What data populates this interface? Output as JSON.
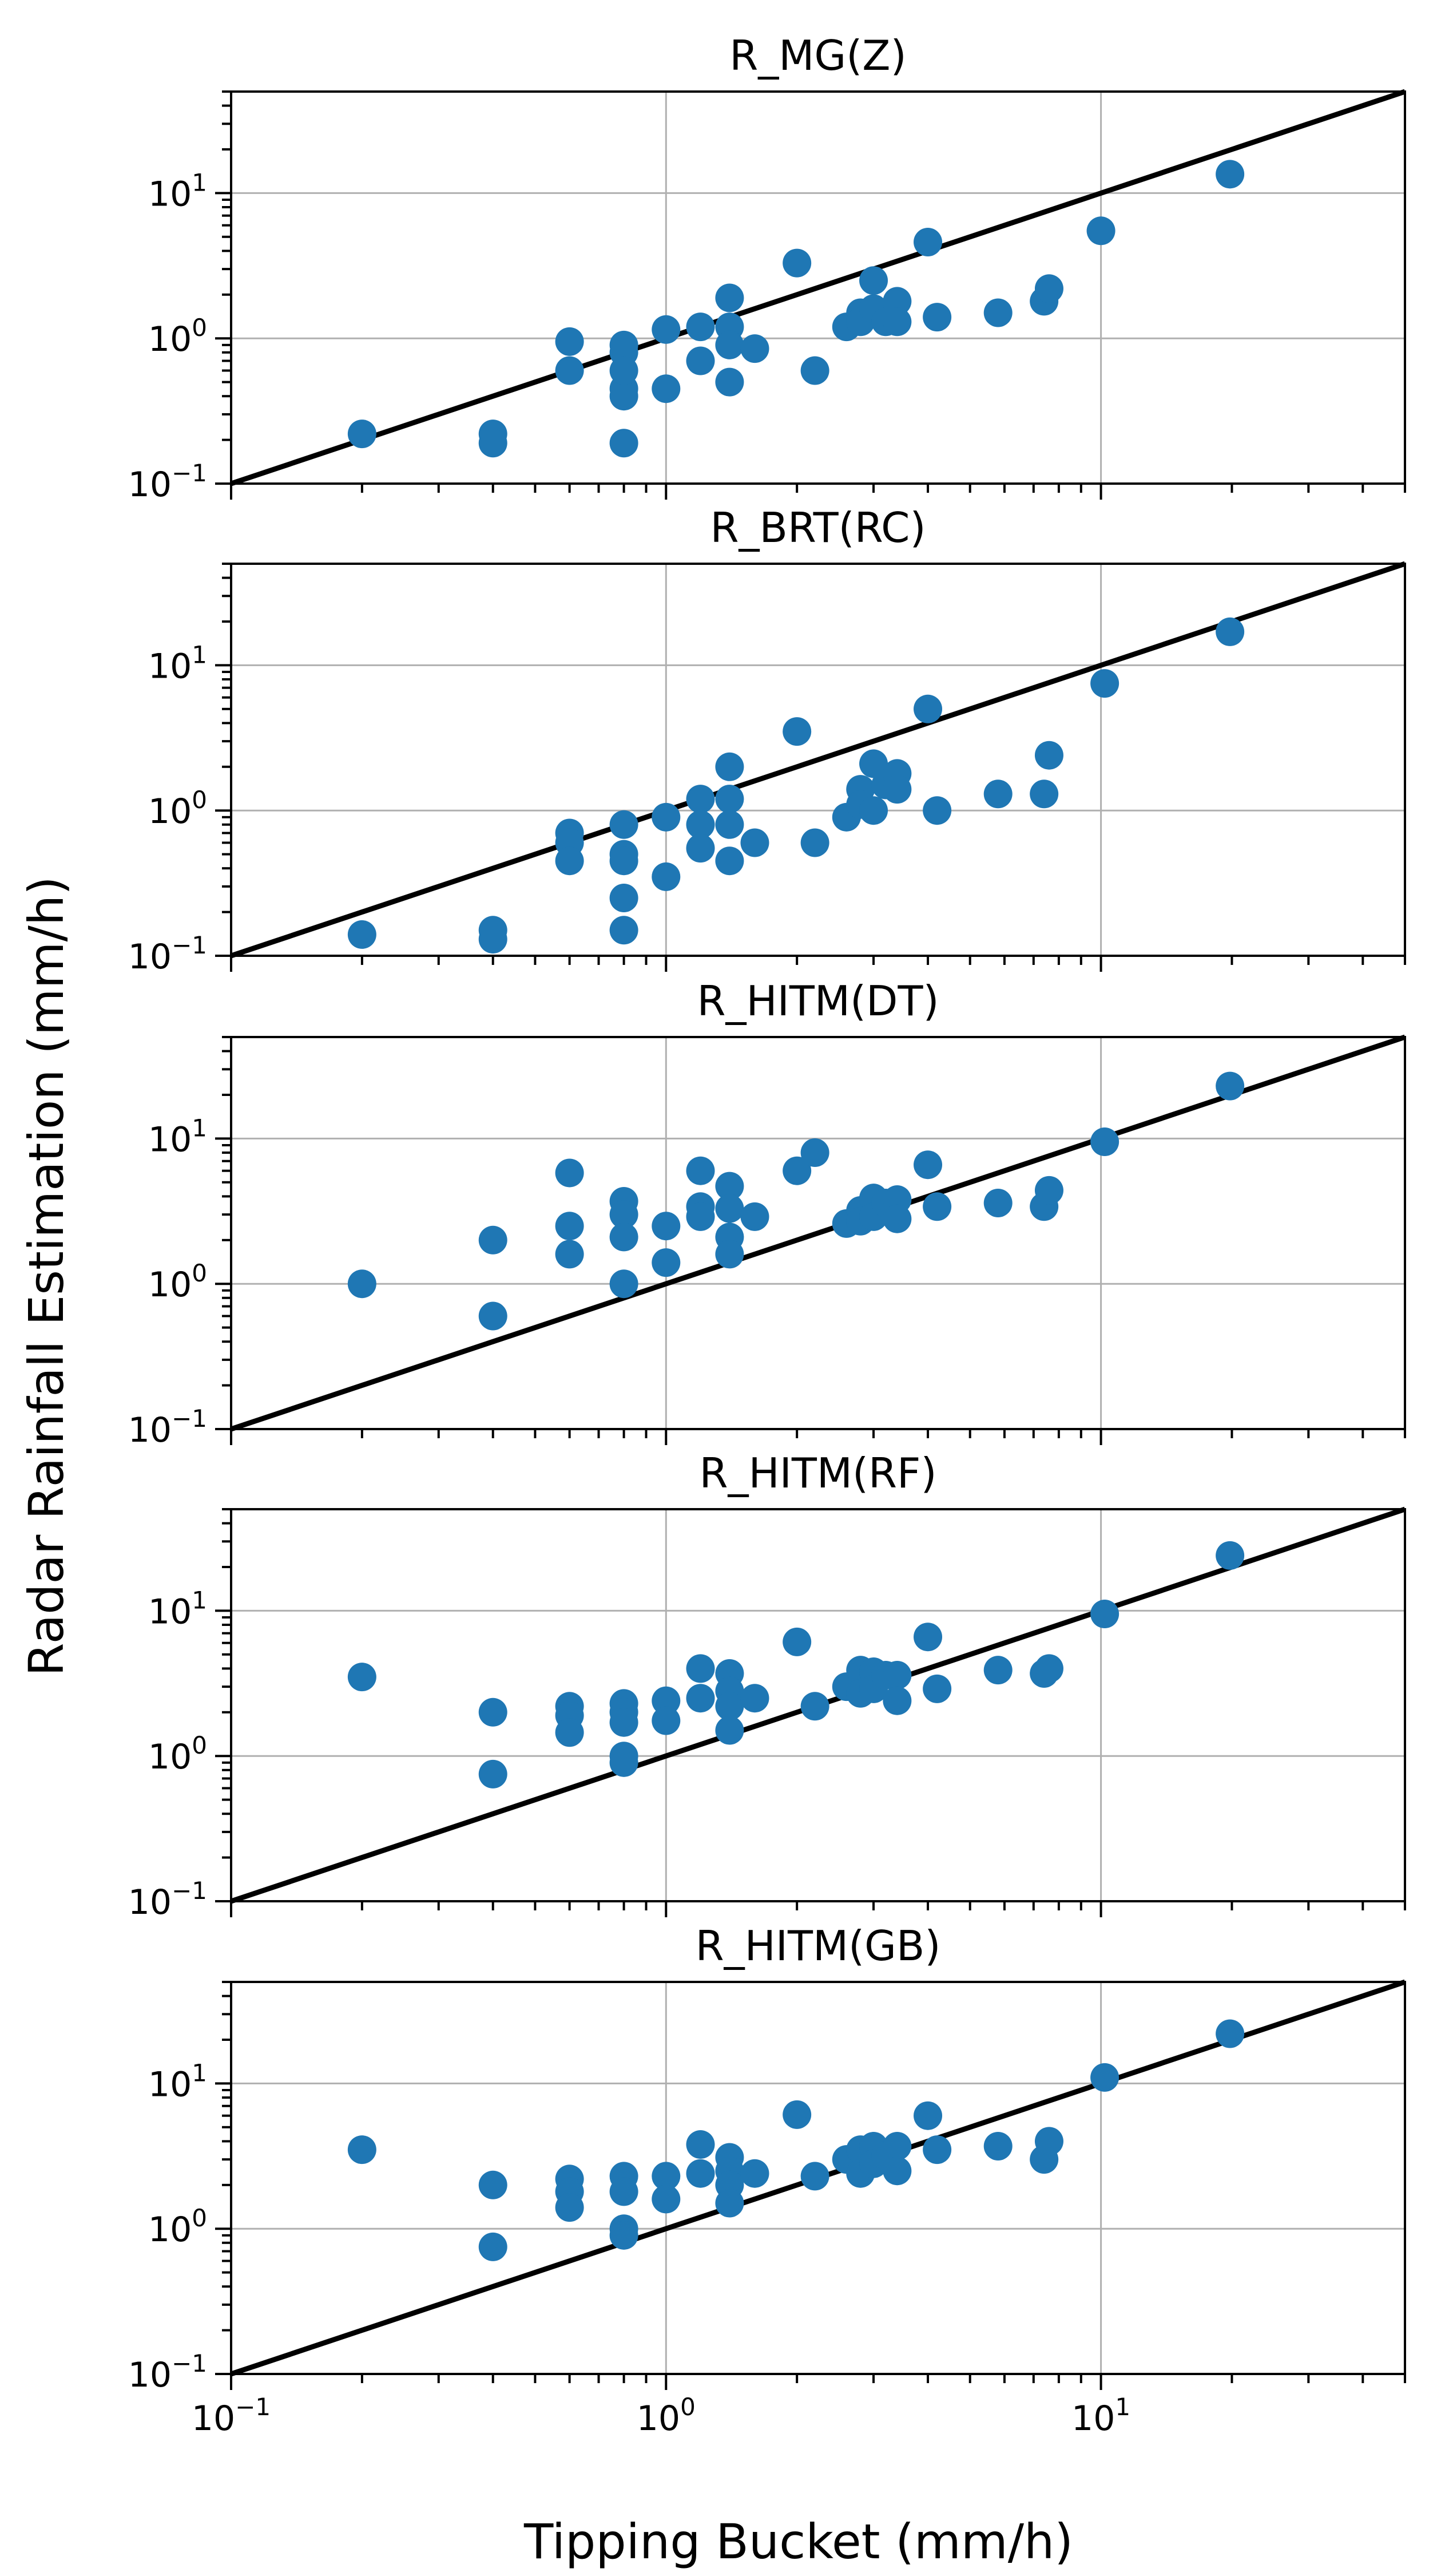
{
  "figure": {
    "ylabel": "Radar Rainfall Estimation (mm/h)",
    "xlabel": "Tipping Bucket (mm/h)"
  },
  "axis_ticks": {
    "x": [
      {
        "base": "10",
        "exp": "−1"
      },
      {
        "base": "10",
        "exp": "0"
      },
      {
        "base": "10",
        "exp": "1"
      }
    ],
    "y": [
      {
        "base": "10",
        "exp": "−1"
      },
      {
        "base": "10",
        "exp": "0"
      },
      {
        "base": "10",
        "exp": "1"
      }
    ]
  },
  "colors": {
    "marker": "#1f77b4",
    "line": "#000000",
    "grid": "#b0b0b0",
    "frame": "#000000"
  },
  "chart_data": [
    {
      "type": "scatter",
      "title": "R_MG(Z)",
      "xscale": "log",
      "yscale": "log",
      "xlim": [
        0.1,
        50
      ],
      "ylim": [
        0.1,
        50
      ],
      "reference_line": "1:1",
      "x": [
        0.2,
        0.4,
        0.4,
        0.6,
        0.6,
        0.8,
        0.8,
        0.8,
        0.8,
        0.8,
        0.8,
        1.0,
        1.0,
        1.2,
        1.2,
        1.4,
        1.4,
        1.4,
        1.4,
        1.6,
        2.0,
        2.2,
        2.6,
        2.8,
        2.8,
        3.0,
        3.0,
        3.2,
        3.4,
        3.4,
        4.0,
        4.2,
        5.8,
        7.4,
        7.6,
        10.0,
        19.8
      ],
      "y": [
        0.22,
        0.22,
        0.19,
        0.95,
        0.6,
        0.9,
        0.8,
        0.45,
        0.4,
        0.19,
        0.6,
        1.15,
        0.45,
        1.2,
        0.7,
        1.9,
        1.2,
        0.9,
        0.5,
        0.85,
        3.3,
        0.6,
        1.2,
        1.5,
        1.3,
        2.5,
        1.6,
        1.3,
        1.8,
        1.3,
        4.6,
        1.4,
        1.5,
        1.8,
        2.2,
        5.5,
        13.5
      ]
    },
    {
      "type": "scatter",
      "title": "R_BRT(RC)",
      "xscale": "log",
      "yscale": "log",
      "xlim": [
        0.1,
        50
      ],
      "ylim": [
        0.1,
        50
      ],
      "reference_line": "1:1",
      "x": [
        0.2,
        0.4,
        0.4,
        0.6,
        0.6,
        0.6,
        0.8,
        0.8,
        0.8,
        0.8,
        0.8,
        1.0,
        1.0,
        1.2,
        1.2,
        1.2,
        1.4,
        1.4,
        1.4,
        1.4,
        1.6,
        2.0,
        2.2,
        2.6,
        2.8,
        2.8,
        3.0,
        3.0,
        3.2,
        3.4,
        3.4,
        4.0,
        4.2,
        5.8,
        7.4,
        7.6,
        10.2,
        19.8
      ],
      "y": [
        0.14,
        0.15,
        0.13,
        0.7,
        0.6,
        0.45,
        0.8,
        0.5,
        0.45,
        0.25,
        0.15,
        0.9,
        0.35,
        1.2,
        0.8,
        0.55,
        2.0,
        1.2,
        0.8,
        0.45,
        0.6,
        3.5,
        0.6,
        0.9,
        1.4,
        1.1,
        2.1,
        1.0,
        1.5,
        1.8,
        1.4,
        5.0,
        1.0,
        1.3,
        1.3,
        2.4,
        7.5,
        17.0
      ]
    },
    {
      "type": "scatter",
      "title": "R_HITM(DT)",
      "xscale": "log",
      "yscale": "log",
      "xlim": [
        0.1,
        50
      ],
      "ylim": [
        0.1,
        50
      ],
      "reference_line": "1:1",
      "x": [
        0.2,
        0.4,
        0.4,
        0.6,
        0.6,
        0.6,
        0.8,
        0.8,
        0.8,
        0.8,
        1.0,
        1.0,
        1.2,
        1.2,
        1.2,
        1.4,
        1.4,
        1.4,
        1.4,
        1.6,
        2.0,
        2.2,
        2.6,
        2.8,
        2.8,
        3.0,
        3.0,
        3.2,
        3.4,
        3.4,
        4.0,
        4.2,
        5.8,
        7.4,
        7.6,
        10.2,
        19.8
      ],
      "y": [
        1.0,
        2.0,
        0.6,
        5.8,
        2.5,
        1.6,
        3.7,
        3.0,
        2.1,
        1.0,
        2.5,
        1.4,
        6.0,
        3.4,
        2.9,
        4.7,
        3.3,
        2.1,
        1.6,
        2.9,
        6.0,
        8.0,
        2.6,
        3.2,
        2.7,
        3.9,
        2.9,
        3.6,
        3.8,
        2.8,
        6.6,
        3.4,
        3.6,
        3.4,
        4.4,
        9.5,
        23.0
      ]
    },
    {
      "type": "scatter",
      "title": "R_HITM(RF)",
      "xscale": "log",
      "yscale": "log",
      "xlim": [
        0.1,
        50
      ],
      "ylim": [
        0.1,
        50
      ],
      "reference_line": "1:1",
      "x": [
        0.2,
        0.4,
        0.4,
        0.6,
        0.6,
        0.6,
        0.8,
        0.8,
        0.8,
        0.8,
        0.8,
        1.0,
        1.0,
        1.2,
        1.2,
        1.4,
        1.4,
        1.4,
        1.4,
        1.6,
        2.0,
        2.2,
        2.6,
        2.8,
        2.8,
        3.0,
        3.0,
        3.2,
        3.4,
        3.4,
        4.0,
        4.2,
        5.8,
        7.4,
        7.6,
        10.2,
        19.8
      ],
      "y": [
        3.5,
        2.0,
        0.75,
        2.2,
        1.9,
        1.45,
        2.3,
        2.0,
        1.7,
        1.0,
        0.9,
        2.4,
        1.75,
        4.0,
        2.5,
        3.7,
        2.8,
        2.2,
        1.5,
        2.5,
        6.1,
        2.2,
        3.0,
        3.9,
        2.7,
        3.8,
        2.9,
        3.6,
        3.6,
        2.4,
        6.6,
        2.9,
        3.9,
        3.7,
        4.0,
        9.5,
        24.0
      ]
    },
    {
      "type": "scatter",
      "title": "R_HITM(GB)",
      "xscale": "log",
      "yscale": "log",
      "xlim": [
        0.1,
        50
      ],
      "ylim": [
        0.1,
        50
      ],
      "reference_line": "1:1",
      "x": [
        0.2,
        0.4,
        0.4,
        0.6,
        0.6,
        0.6,
        0.8,
        0.8,
        0.8,
        0.8,
        1.0,
        1.0,
        1.2,
        1.2,
        1.4,
        1.4,
        1.4,
        1.4,
        1.6,
        2.0,
        2.2,
        2.6,
        2.8,
        2.8,
        3.0,
        3.0,
        3.2,
        3.4,
        3.4,
        4.0,
        4.2,
        5.8,
        7.4,
        7.6,
        10.2,
        19.8
      ],
      "y": [
        3.5,
        2.0,
        0.75,
        2.2,
        1.8,
        1.4,
        2.3,
        1.8,
        1.0,
        0.9,
        2.3,
        1.6,
        3.8,
        2.4,
        3.1,
        2.5,
        2.0,
        1.5,
        2.4,
        6.1,
        2.3,
        3.0,
        3.5,
        2.4,
        3.7,
        2.8,
        3.2,
        3.7,
        2.5,
        6.0,
        3.5,
        3.7,
        3.0,
        4.0,
        11.0,
        22.0
      ]
    }
  ]
}
